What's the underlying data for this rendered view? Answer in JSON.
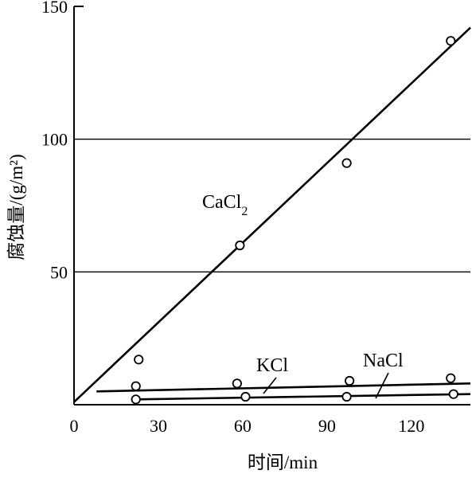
{
  "chart_data": {
    "type": "scatter",
    "xlabel": "时间/min",
    "ylabel": "腐蚀量/(g/m²)",
    "xlim": [
      0,
      141
    ],
    "ylim": [
      0,
      150
    ],
    "x_ticks": [
      0,
      30,
      60,
      90,
      120
    ],
    "y_ticks": [
      50,
      100,
      150
    ],
    "grid_y": [
      50,
      100
    ],
    "grid_x": false,
    "legend": "inline labels on series",
    "series": [
      {
        "name": "CaCl",
        "name_sub": "2",
        "points": [
          {
            "x": 23,
            "y": 17
          },
          {
            "x": 59,
            "y": 60
          },
          {
            "x": 97,
            "y": 91
          },
          {
            "x": 134,
            "y": 137
          }
        ],
        "fit": {
          "x": [
            0,
            141
          ],
          "y": [
            1,
            142
          ]
        }
      },
      {
        "name": "KCl",
        "name_sub": "",
        "points": [
          {
            "x": 22,
            "y": 7
          },
          {
            "x": 58,
            "y": 8
          },
          {
            "x": 98,
            "y": 9
          },
          {
            "x": 134,
            "y": 10
          }
        ],
        "fit": {
          "x": [
            8,
            141
          ],
          "y": [
            5,
            8
          ]
        }
      },
      {
        "name": "NaCl",
        "name_sub": "",
        "points": [
          {
            "x": 22,
            "y": 2
          },
          {
            "x": 61,
            "y": 3
          },
          {
            "x": 97,
            "y": 3
          },
          {
            "x": 135,
            "y": 4
          }
        ],
        "fit": {
          "x": [
            22,
            141
          ],
          "y": [
            2,
            4
          ]
        }
      }
    ]
  }
}
